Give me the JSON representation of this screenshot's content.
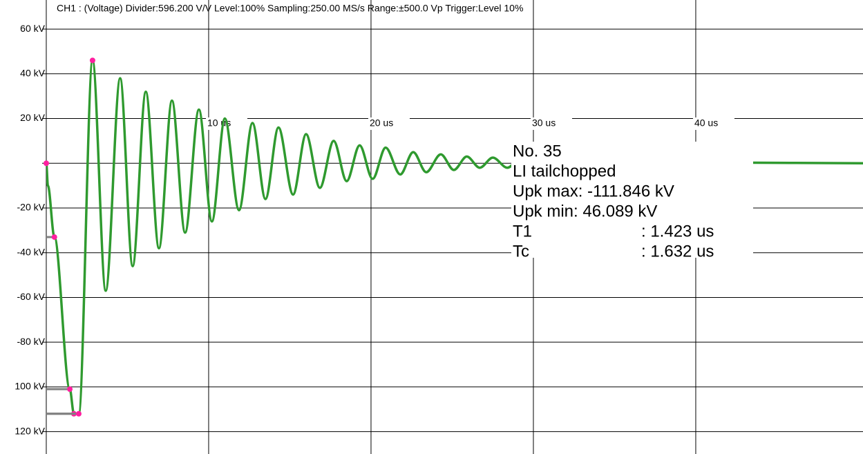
{
  "chart_data": {
    "type": "line",
    "title": "CH1 : (Voltage)  Divider:596.200 V/V  Level:100%  Sampling:250.00 MS/s  Range:±500.0 Vp  Trigger:Level 10%",
    "xlim": [
      -2.85,
      50.3
    ],
    "xticks": [
      {
        "value": 10,
        "label": "10 us"
      },
      {
        "value": 20,
        "label": "20 us"
      },
      {
        "value": 30,
        "label": "30 us"
      },
      {
        "value": 40,
        "label": "40 us"
      }
    ],
    "ylim": [
      -130,
      73
    ],
    "yticks": [
      {
        "value": 60,
        "label": "60 kV"
      },
      {
        "value": 40,
        "label": "40 kV"
      },
      {
        "value": 20,
        "label": "20 kV"
      },
      0,
      {
        "value": -20,
        "label": "-20 kV"
      },
      {
        "value": -40,
        "label": "-40 kV"
      },
      {
        "value": -60,
        "label": "-60 kV"
      },
      {
        "value": -80,
        "label": "-80 kV"
      },
      {
        "value": -100,
        "label": "100 kV"
      },
      {
        "value": -120,
        "label": "120 kV"
      }
    ],
    "grid": true,
    "series": [
      {
        "color": "#2f9a2f",
        "x": [
          -2.85,
          0,
          0.1,
          0.5,
          1.45,
          1.7,
          2.0,
          2.85,
          3.66,
          4.55,
          5.32,
          6.13,
          6.94,
          7.74,
          8.55,
          9.4,
          10.2,
          11.0,
          11.87,
          12.7,
          13.5,
          14.3,
          15.2,
          16.0,
          16.85,
          17.7,
          18.5,
          19.3,
          20.1,
          20.9,
          21.8,
          22.6,
          23.4,
          24.3,
          25.1,
          25.9,
          26.7,
          27.5,
          28.4,
          29.2,
          30.0,
          30.9,
          31.7,
          32.5,
          33.4,
          34.2,
          35.0,
          35.9,
          36.7,
          37.5,
          38.4,
          39.2,
          40.0,
          42.0,
          50.3
        ],
        "values": [
          0,
          0,
          -10,
          -33,
          -101,
          -112,
          -112,
          46,
          -57,
          38,
          -46,
          32,
          -38,
          28,
          -31,
          24,
          -26,
          20,
          -21,
          18,
          -16,
          16,
          -14,
          13,
          -11,
          10,
          -8,
          8,
          -7,
          7,
          -5,
          5,
          -4,
          4,
          -3,
          3,
          -2,
          2.5,
          -2,
          2,
          -1.5,
          1.5,
          -1.5,
          1.2,
          -1,
          1,
          -1,
          0.8,
          -0.8,
          0.6,
          -0.6,
          0.5,
          -0.4,
          0.3,
          0
        ]
      }
    ],
    "markers": {
      "color": "#ff1fa0",
      "x": [
        0,
        0.5,
        1.45,
        1.7,
        2.0,
        2.85
      ],
      "values": [
        0,
        -33,
        -101,
        -112,
        -112,
        46
      ]
    },
    "info": {
      "number": "No. 35",
      "kind": "LI tailchopped",
      "upk_max": "Upk max: -111.846 kV",
      "upk_min": "Upk min: 46.089 kV",
      "t1_name": "T1",
      "t1_value": ": 1.423 us",
      "tc_name": "Tc",
      "tc_value": ": 1.632 us"
    }
  }
}
